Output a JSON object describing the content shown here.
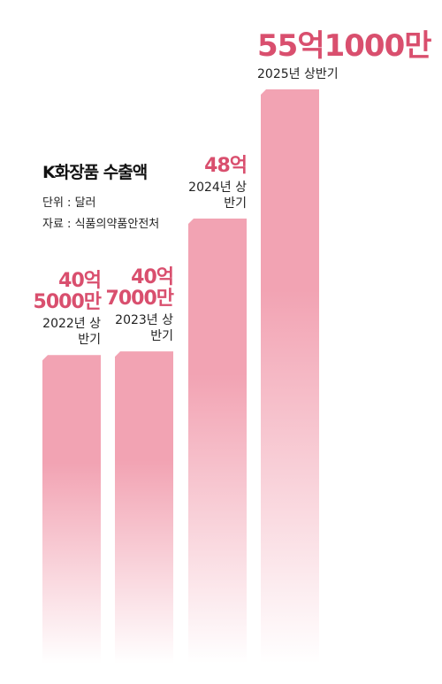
{
  "chart_data": {
    "type": "bar",
    "title": "K화장품 수출액",
    "unit_note": "단위 : 달러",
    "source": "자료 : 식품의약품안전처",
    "categories": [
      "2022년 상반기",
      "2023년 상반기",
      "2024년 상반기",
      "2025년 상반기"
    ],
    "values": [
      4050000000,
      4070000000,
      4800000000,
      5510000000
    ],
    "value_labels": [
      "40억 5000만",
      "40억 7000만",
      "48억",
      "55억1000만"
    ],
    "color": "#f2a3b3",
    "label_color": "#d94f6e",
    "ylim": [
      2500000000,
      5600000000
    ]
  }
}
